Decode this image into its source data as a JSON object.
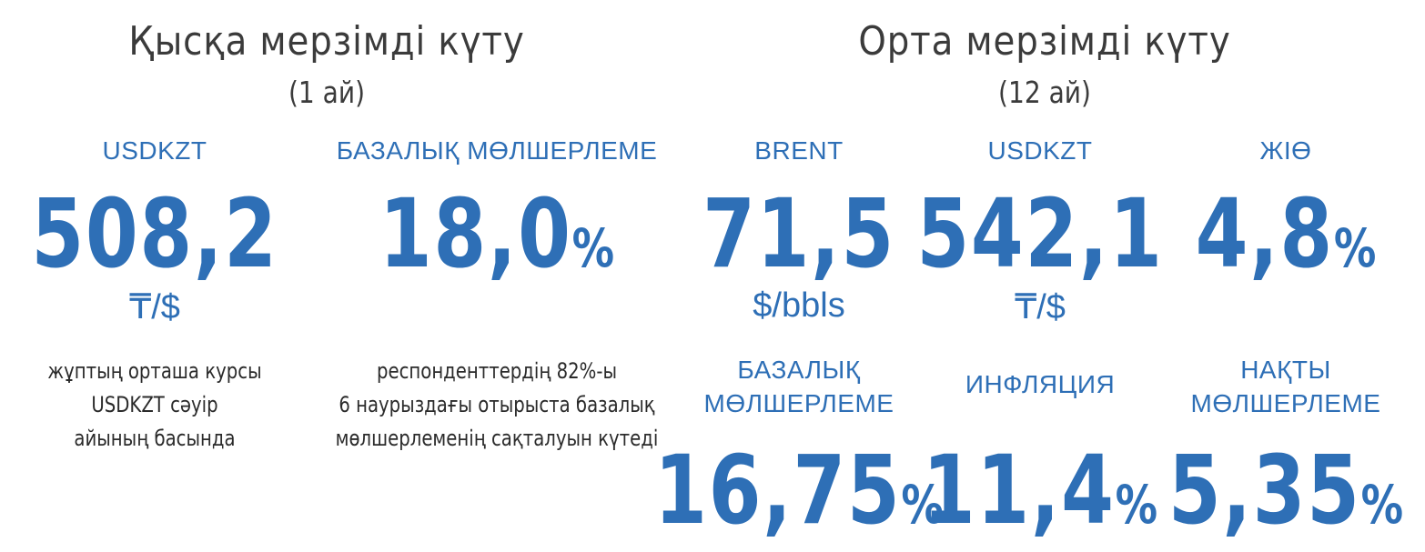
{
  "short_term": {
    "title": "Қысқа мерзімді күту",
    "period": "(1 ай)",
    "usdkzt": {
      "label": "USDKZT",
      "value": "508,2",
      "unit": "₸/$",
      "note_lines": [
        "жұптың орташа курсы",
        "USDKZT сәуір",
        "айының басында"
      ]
    },
    "base_rate": {
      "label": "БАЗАЛЫҚ МӨЛШЕРЛЕМЕ",
      "value": "18,0",
      "suffix": "%",
      "note_lines": [
        "респонденттердің 82%-ы",
        "6 наурыздағы отырыста базалық",
        "мөлшерлеменің сақталуын күтеді"
      ]
    }
  },
  "medium_term": {
    "title": "Орта мерзімді күту",
    "period": "(12 ай)",
    "brent": {
      "label": "BRENT",
      "value": "71,5",
      "unit": "$/bbls"
    },
    "usdkzt": {
      "label": "USDKZT",
      "value": "542,1",
      "unit": "₸/$"
    },
    "gdp": {
      "label": "ЖІӨ",
      "value": "4,8",
      "suffix": "%"
    },
    "base_rate": {
      "label_lines": [
        "БАЗАЛЫҚ",
        "МӨЛШЕРЛЕМЕ"
      ],
      "value": "16,75",
      "suffix": "%"
    },
    "inflation": {
      "label": "ИНФЛЯЦИЯ",
      "value": "11,4",
      "suffix": "%"
    },
    "real_rate": {
      "label_lines": [
        "НАҚТЫ",
        "МӨЛШЕРЛЕМЕ"
      ],
      "value": "5,35",
      "suffix": "%"
    }
  },
  "colors": {
    "accent": "#2e6fb6",
    "title": "#3b3b3b",
    "text": "#2b2b2b"
  }
}
